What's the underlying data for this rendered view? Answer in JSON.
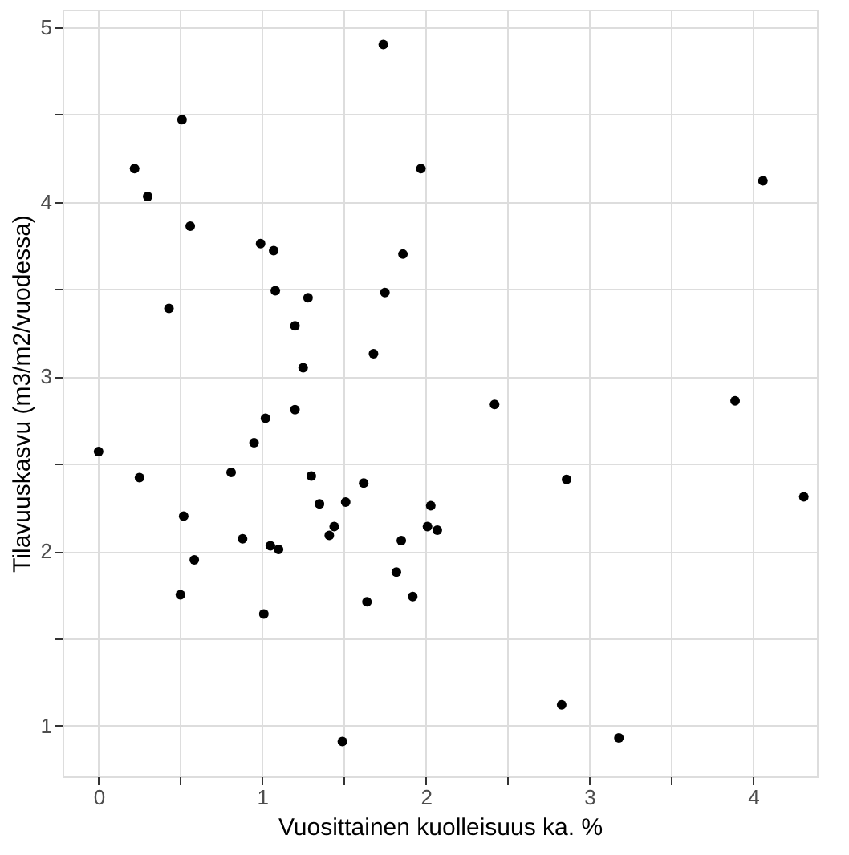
{
  "chart_data": {
    "type": "scatter",
    "xlabel": "Vuosittainen kuolleisuus ka. %",
    "ylabel": "Tilavuuskasvu (m3/m2/vuodessa)",
    "x": [
      0.22,
      0.3,
      0.51,
      0.56,
      0.43,
      0.99,
      1.07,
      1.08,
      1.28,
      1.2,
      1.25,
      1.74,
      1.97,
      1.86,
      1.75,
      1.68,
      4.06,
      0,
      0.25,
      0.52,
      0.585,
      0.5,
      0.81,
      0.88,
      0.95,
      1.02,
      1.2,
      1.05,
      1.1,
      1.01,
      1.3,
      1.35,
      1.51,
      1.41,
      1.44,
      1.62,
      1.64,
      1.49,
      1.85,
      1.82,
      1.92,
      2.42,
      2.86,
      2.03,
      2.01,
      2.07,
      3.89,
      4.31,
      2.83,
      3.18
    ],
    "series": [
      {
        "color": "#000000",
        "values": [
          4.19,
          4.03,
          4.47,
          3.86,
          3.39,
          3.76,
          3.72,
          3.49,
          3.45,
          3.29,
          3.05,
          4.9,
          4.19,
          3.7,
          3.48,
          3.13,
          4.12,
          2.57,
          2.42,
          2.2,
          1.95,
          1.75,
          2.45,
          2.07,
          2.62,
          2.76,
          2.81,
          2.03,
          2.01,
          1.64,
          2.43,
          2.27,
          2.28,
          2.09,
          2.14,
          2.39,
          1.71,
          0.91,
          2.06,
          1.88,
          1.74,
          2.84,
          2.41,
          2.26,
          2.14,
          2.12,
          2.86,
          2.31,
          1.12,
          0.93
        ]
      }
    ],
    "xlim": [
      -0.22,
      4.39
    ],
    "ylim": [
      0.71,
      5.1
    ],
    "xticks": [
      0,
      {
        "value": 0.5,
        "label": null
      },
      1,
      {
        "value": 1.5,
        "label": null
      },
      2,
      {
        "value": 2.5,
        "label": null
      },
      3,
      {
        "value": 3.5,
        "label": null
      },
      4
    ],
    "yticks": [
      {
        "value": 1,
        "label": "1"
      },
      {
        "value": 1.5,
        "label": null
      },
      2,
      {
        "value": 2.5,
        "label": null
      },
      3,
      {
        "value": 3.5,
        "label": null
      },
      4,
      {
        "value": 4.5,
        "label": null
      },
      5
    ],
    "grid": true,
    "marker": "circle"
  }
}
